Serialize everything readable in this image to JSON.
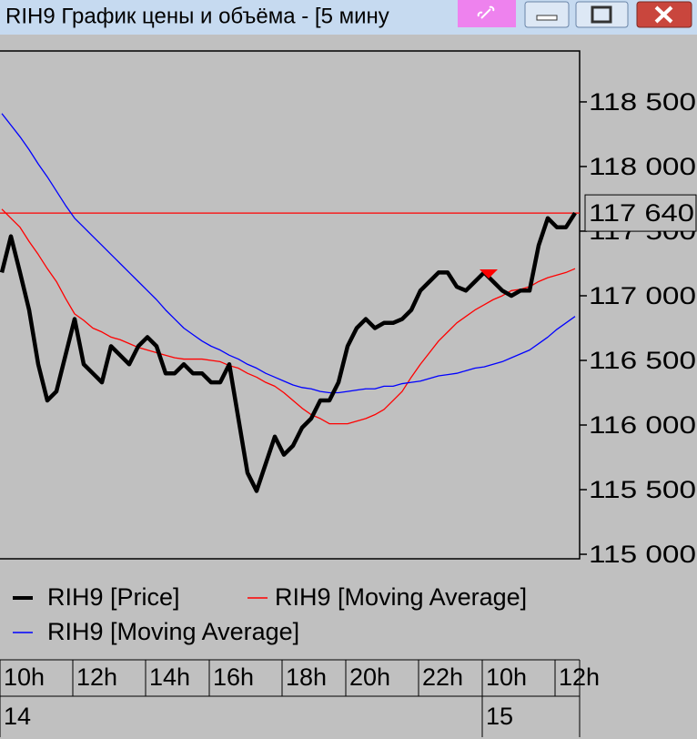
{
  "window": {
    "title": "RIH9 График цены и объёма - [5 мину"
  },
  "chart_data": {
    "type": "line",
    "categories": [
      "10h",
      null,
      null,
      null,
      null,
      null,
      null,
      null,
      "12h",
      null,
      null,
      null,
      null,
      null,
      null,
      null,
      "14h",
      null,
      null,
      null,
      null,
      null,
      null,
      "16h",
      null,
      null,
      null,
      null,
      null,
      null,
      null,
      "18h",
      null,
      null,
      null,
      null,
      null,
      null,
      "20h",
      null,
      null,
      null,
      null,
      null,
      null,
      null,
      "22h",
      null,
      null,
      null,
      null,
      null,
      null,
      "10h",
      null,
      null,
      null,
      null,
      null,
      null,
      null,
      "12h",
      null,
      null
    ],
    "dates": [
      "14",
      null,
      null,
      null,
      null,
      null,
      null,
      null,
      null,
      null,
      null,
      null,
      null,
      null,
      null,
      null,
      null,
      null,
      null,
      null,
      null,
      null,
      null,
      null,
      null,
      null,
      null,
      null,
      null,
      null,
      null,
      null,
      null,
      null,
      null,
      null,
      null,
      null,
      null,
      null,
      null,
      null,
      null,
      null,
      null,
      null,
      null,
      null,
      null,
      null,
      null,
      null,
      null,
      "15",
      null,
      null,
      null,
      null,
      null,
      null,
      null,
      null,
      null,
      null
    ],
    "series": [
      {
        "name": "RIH9 [Price]",
        "color": "#000000",
        "values": [
          117180,
          117460,
          117180,
          116890,
          116470,
          116190,
          116260,
          116540,
          116820,
          116470,
          116400,
          116330,
          116610,
          116540,
          116470,
          116610,
          116680,
          116610,
          116400,
          116400,
          116470,
          116400,
          116400,
          116330,
          116330,
          116470,
          116050,
          115630,
          115490,
          115700,
          115910,
          115770,
          115840,
          115980,
          116050,
          116190,
          116190,
          116330,
          116610,
          116750,
          116820,
          116750,
          116790,
          116790,
          116820,
          116890,
          117040,
          117110,
          117180,
          117180,
          117070,
          117040,
          117110,
          117180,
          117110,
          117040,
          117000,
          117040,
          117040,
          117390,
          117600,
          117530,
          117530,
          117640
        ]
      },
      {
        "name": "RIH9 [Moving Average]",
        "color": "#ff0000",
        "values": [
          117670,
          117600,
          117530,
          117420,
          117320,
          117210,
          117110,
          116980,
          116860,
          116810,
          116750,
          116720,
          116680,
          116660,
          116630,
          116600,
          116580,
          116560,
          116540,
          116520,
          116510,
          116510,
          116510,
          116500,
          116490,
          116460,
          116440,
          116400,
          116370,
          116330,
          116300,
          116250,
          116190,
          116130,
          116080,
          116050,
          116010,
          116010,
          116010,
          116030,
          116050,
          116080,
          116120,
          116190,
          116260,
          116370,
          116470,
          116560,
          116650,
          116720,
          116790,
          116840,
          116890,
          116930,
          116970,
          117000,
          117040,
          117050,
          117070,
          117110,
          117140,
          117160,
          117180,
          117210
        ]
      },
      {
        "name": "RIH9 [Moving Average]",
        "color": "#0000ff",
        "values": [
          118410,
          118320,
          118230,
          118130,
          118020,
          117920,
          117810,
          117700,
          117600,
          117530,
          117460,
          117390,
          117320,
          117250,
          117180,
          117110,
          117040,
          116970,
          116890,
          116820,
          116750,
          116700,
          116650,
          116610,
          116580,
          116540,
          116510,
          116470,
          116440,
          116400,
          116370,
          116340,
          116310,
          116290,
          116280,
          116260,
          116250,
          116250,
          116260,
          116270,
          116280,
          116280,
          116300,
          116300,
          116320,
          116330,
          116340,
          116360,
          116380,
          116390,
          116400,
          116420,
          116440,
          116450,
          116470,
          116490,
          116520,
          116550,
          116580,
          116630,
          116680,
          116740,
          116790,
          116840
        ]
      }
    ],
    "ylim": [
      114965,
      118894
    ],
    "yticks": [
      {
        "value": 115000,
        "label": "115 000"
      },
      {
        "value": 115500,
        "label": "115 500"
      },
      {
        "value": 116000,
        "label": "116 000"
      },
      {
        "value": 116500,
        "label": "116 500"
      },
      {
        "value": 117000,
        "label": "117 000"
      },
      {
        "value": 117500,
        "label": "117 500"
      },
      {
        "value": 118000,
        "label": "118 000"
      },
      {
        "value": 118500,
        "label": "118 500"
      }
    ],
    "price_line": {
      "value": 117640,
      "label": "117 640",
      "color": "#ff0000"
    }
  }
}
